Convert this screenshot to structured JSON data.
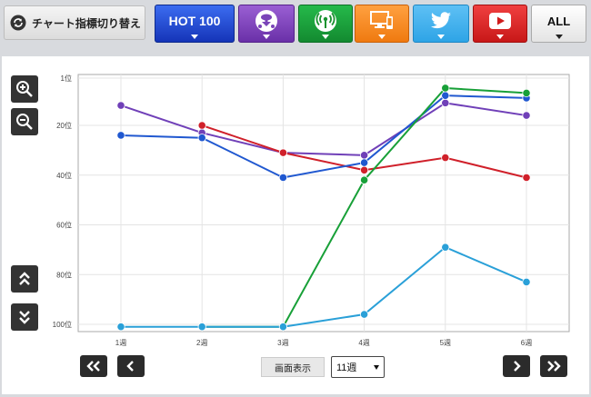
{
  "toolbar": {
    "switch_label": "チャート指標切り替え",
    "tabs": [
      {
        "label": "HOT 100",
        "icon": "hot100"
      },
      {
        "label": "",
        "icon": "download-icon"
      },
      {
        "label": "",
        "icon": "radio-icon"
      },
      {
        "label": "",
        "icon": "pc-icon"
      },
      {
        "label": "",
        "icon": "twitter-icon"
      },
      {
        "label": "",
        "icon": "youtube-icon"
      },
      {
        "label": "ALL",
        "icon": ""
      }
    ]
  },
  "controls": {
    "view_label": "画面表示",
    "view_value": "11週"
  },
  "chart_data": {
    "type": "line",
    "x": [
      "1週",
      "2週",
      "3週",
      "4週",
      "5週",
      "6週"
    ],
    "ylim": [
      1,
      100
    ],
    "y_ticks": [
      "1位",
      "20位",
      "40位",
      "60位",
      "80位",
      "100位"
    ],
    "y_tick_values": [
      1,
      20,
      40,
      60,
      80,
      100
    ],
    "reversed_y": true,
    "grid": true,
    "series": [
      {
        "color": "#7040b8",
        "values": [
          12,
          23,
          31,
          32,
          11,
          16
        ]
      },
      {
        "color": "#d0202a",
        "values": [
          null,
          20,
          31,
          38,
          33,
          41
        ]
      },
      {
        "color": "#2058d0",
        "values": [
          24,
          25,
          41,
          35,
          8,
          9
        ]
      },
      {
        "color": "#18a038",
        "values": [
          null,
          101,
          101,
          42,
          5,
          7
        ]
      },
      {
        "color": "#2aa0d8",
        "values": [
          101,
          101,
          101,
          96,
          69,
          83
        ]
      }
    ]
  }
}
